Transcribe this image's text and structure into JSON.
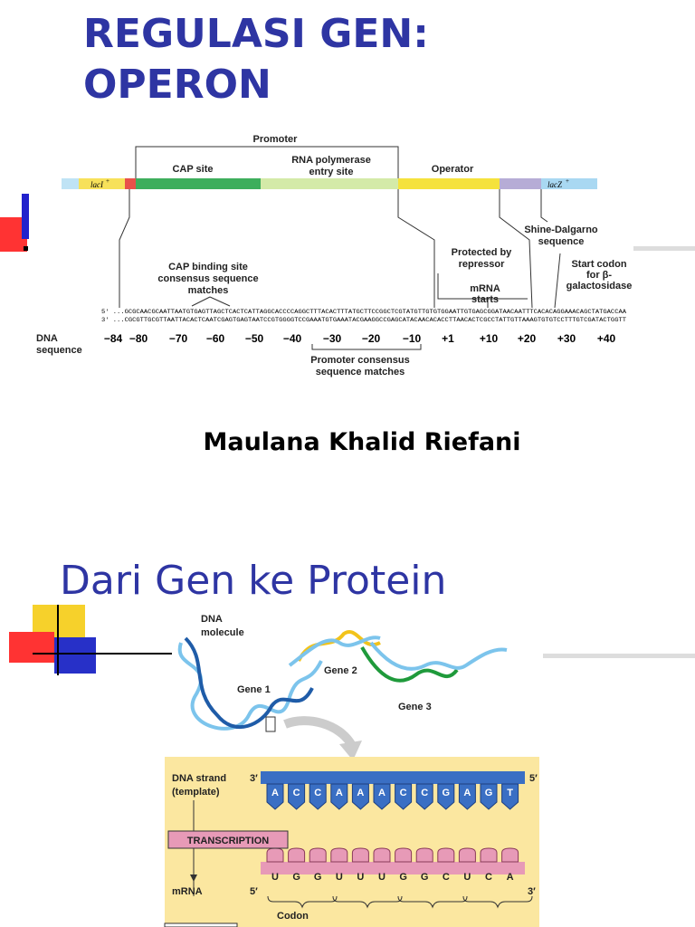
{
  "slide1": {
    "title_lines": [
      "REGULASI GEN:",
      "OPERON"
    ],
    "diagram": {
      "promoter": "Promoter",
      "cap_site": "CAP site",
      "rna_pol": [
        "RNA polymerase",
        "entry site"
      ],
      "operator": "Operator",
      "laci": "lacI",
      "laci_sup": "+",
      "lacz": "lacZ",
      "lacz_sup": "+",
      "shine": [
        "Shine-Dalgarno",
        "sequence"
      ],
      "protected": [
        "Protected by",
        "repressor"
      ],
      "cap_binding": [
        "CAP binding site",
        "consensus sequence",
        "matches"
      ],
      "mrna_starts": [
        "mRNA",
        "starts"
      ],
      "start_codon": [
        "Start codon",
        "for β-",
        "galactosidase"
      ],
      "seq_top": "5′ ...GCGCAACGCAATTAATGTGAGTTAGCTCACTCATTAGGCACCCCAGGCTTTACACTTTATGCTTCCGGCTCGTATGTTGTGTGGAATTGTGAGCGGATAACAATTTCACACAGGAAACAGCTATGACCAA",
      "seq_bottom": "3′ ...CGCGTTGCGTTAATTACACTCAATCGAGTGAGTAATCCGTGGGGTCCGAAATGTGAAATACGAAGGCCGAGCATACAACACACCTTAACACTCGCCTATTGTTAAAGTGTGTCCTTTGTCGATACTGGTT",
      "dna_sequence": [
        "DNA",
        "sequence"
      ],
      "positions": [
        "−84",
        "−80",
        "−70",
        "−60",
        "−50",
        "−40",
        "−30",
        "−20",
        "−10",
        "+1",
        "+10",
        "+20",
        "+30",
        "+40"
      ],
      "promoter_consensus": [
        "Promoter consensus",
        "sequence matches"
      ]
    },
    "author": "Maulana Khalid Riefani"
  },
  "slide2": {
    "title": "Dari Gen ke Protein",
    "diagram": {
      "dna_molecule": [
        "DNA",
        "molecule"
      ],
      "gene1": "Gene 1",
      "gene2": "Gene 2",
      "gene3": "Gene 3",
      "dna_strand": [
        "DNA strand",
        "(template)"
      ],
      "template_left": "3′",
      "template_right": "5′",
      "template_bases": [
        "A",
        "C",
        "C",
        "A",
        "A",
        "A",
        "C",
        "C",
        "G",
        "A",
        "G",
        "T"
      ],
      "transcription": "TRANSCRIPTION",
      "mrna": "mRNA",
      "mrna_left": "5′",
      "mrna_right": "3′",
      "mrna_bases": [
        "U",
        "G",
        "G",
        "U",
        "U",
        "U",
        "G",
        "G",
        "C",
        "U",
        "C",
        "A"
      ],
      "codon": "Codon"
    }
  }
}
